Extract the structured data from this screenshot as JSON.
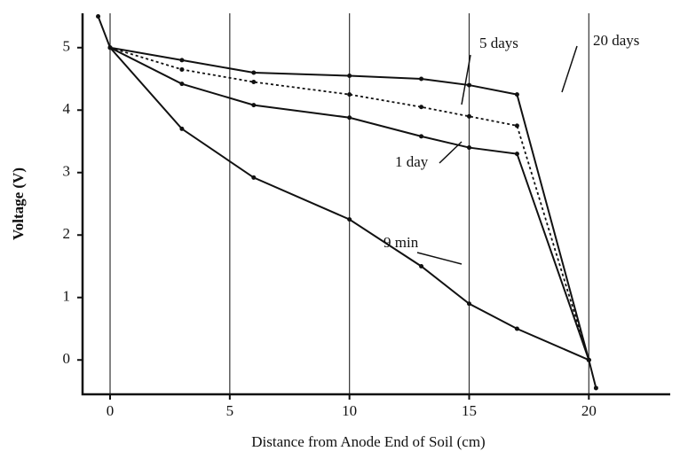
{
  "chart_data": {
    "type": "line",
    "xlabel": "Distance from Anode End of Soil (cm)",
    "ylabel": "Voltage (V)",
    "xlim": [
      -1.15,
      23.4
    ],
    "ylim": [
      -0.55,
      5.55
    ],
    "xticks": [
      0,
      5,
      10,
      15,
      20
    ],
    "yticks": [
      0,
      1,
      2,
      3,
      4,
      5
    ],
    "grid": "x",
    "series": [
      {
        "name": "20 days",
        "color": "#111111",
        "style": "solid",
        "x": [
          0,
          3,
          6,
          10,
          13,
          15,
          17,
          20
        ],
        "values": [
          5,
          4.8,
          4.6,
          4.55,
          4.5,
          4.4,
          4.25,
          0
        ]
      },
      {
        "name": "5 days",
        "color": "#111111",
        "style": "dotted",
        "x": [
          0,
          3,
          6,
          10,
          13,
          15,
          17,
          20
        ],
        "values": [
          5,
          4.65,
          4.45,
          4.25,
          4.05,
          3.9,
          3.75,
          0
        ]
      },
      {
        "name": "1 day",
        "color": "#111111",
        "style": "solid",
        "x": [
          0,
          3,
          6,
          10,
          13,
          15,
          17,
          20
        ],
        "values": [
          5,
          4.42,
          4.08,
          3.88,
          3.58,
          3.4,
          3.3,
          0
        ]
      },
      {
        "name": "9 min",
        "color": "#111111",
        "style": "solid",
        "x": [
          -0.5,
          0,
          3,
          6,
          10,
          13,
          15,
          17,
          20,
          20.3
        ],
        "values": [
          5.5,
          5,
          3.7,
          2.92,
          2.25,
          1.5,
          0.9,
          0.5,
          0,
          -0.45
        ]
      }
    ]
  }
}
